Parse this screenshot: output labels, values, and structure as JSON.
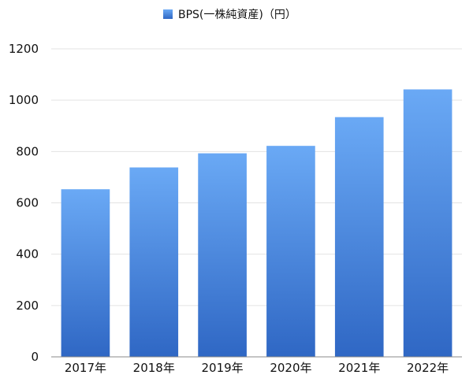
{
  "chart_data": {
    "type": "bar",
    "categories": [
      "2017年",
      "2018年",
      "2019年",
      "2020年",
      "2021年",
      "2022年"
    ],
    "series": [
      {
        "name": "BPS(一株純資産)（円）",
        "values": [
          653,
          738,
          793,
          822,
          934,
          1042
        ]
      }
    ],
    "title": "",
    "xlabel": "",
    "ylabel": "",
    "ylim": [
      0,
      1200
    ],
    "yticks": [
      0,
      200,
      400,
      600,
      800,
      1000,
      1200
    ],
    "grid": true,
    "legend_position": "top-center",
    "colors": {
      "bar_top": "#6aa9f5",
      "bar_bottom": "#2f67c4",
      "legend_swatch": "#3d7fd8"
    }
  }
}
